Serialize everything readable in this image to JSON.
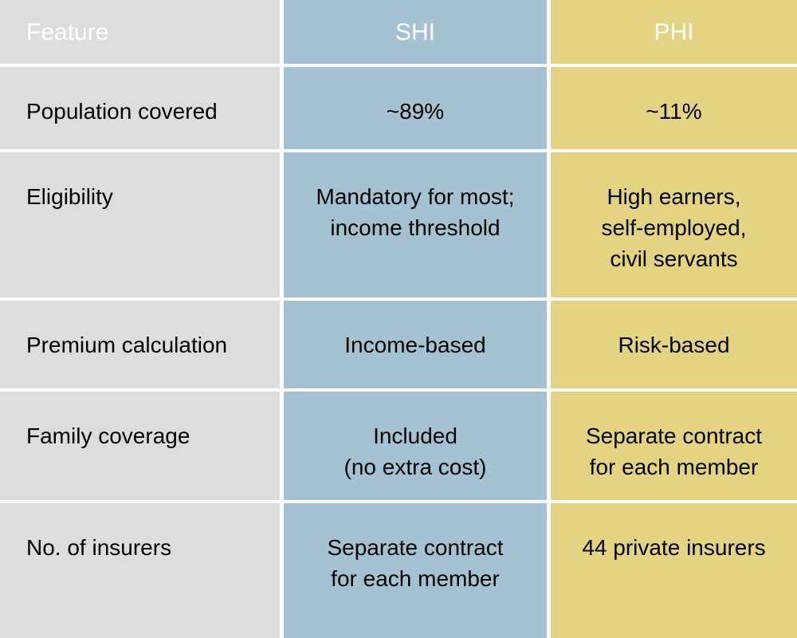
{
  "chart_data": {
    "type": "table",
    "columns": [
      "Feature",
      "SHI",
      "PHI"
    ],
    "rows": [
      [
        "Population covered",
        "~89%",
        "~11%"
      ],
      [
        "Eligibility",
        "Mandatory for most; income threshold",
        "High earners, self-employed, civil servants"
      ],
      [
        "Premium calculation",
        "Income-based",
        "Risk-based"
      ],
      [
        "Family coverage",
        "Included (no extra cost)",
        "Separate contract for each member"
      ],
      [
        "No. of insurers",
        "Separate contract for each member",
        "44 private insurers"
      ]
    ]
  },
  "table": {
    "headers": [
      {
        "label": "Feature"
      },
      {
        "label": "SHI"
      },
      {
        "label": "PHI"
      }
    ],
    "rows": [
      {
        "feature": "Population covered",
        "shi": "~89%",
        "phi": "~11%"
      },
      {
        "feature": "Eligibility",
        "shi": "Mandatory for most;\nincome threshold",
        "phi": "High earners,\nself-employed,\ncivil servants"
      },
      {
        "feature": "Premium calculation",
        "shi": "Income-based",
        "phi": "Risk-based"
      },
      {
        "feature": "Family coverage",
        "shi": "Included\n(no extra cost)",
        "phi": "Separate contract\nfor each member"
      },
      {
        "feature": "No. of insurers",
        "shi": "Separate contract\nfor each member",
        "phi": "44 private insurers"
      }
    ]
  },
  "theme": {
    "header-bg": "#555557",
    "header-text": "#ffffff",
    "feature-col-bg": "#dddddd",
    "shi-col-bg": "#a4c2d2",
    "phi-col-bg": "#e3d383",
    "cell-text": "#000000",
    "gap-color": "#ffffff"
  }
}
